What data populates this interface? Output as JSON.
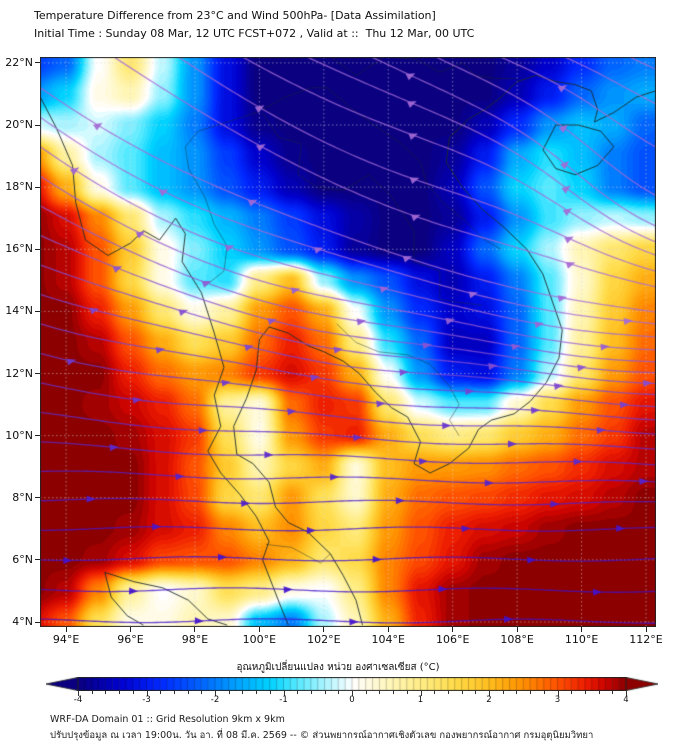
{
  "title": {
    "line1": "Temperature Difference from 23°C and Wind 500hPa- [Data Assimilation]",
    "line2": "Initial Time : Sunday 08 Mar, 12 UTC FCST+072 , Valid at ::  Thu 12 Mar, 00 UTC"
  },
  "map": {
    "lon_min": 93.19,
    "lon_max": 112.31,
    "lat_min": 3.84,
    "lat_max": 22.19,
    "x_ticks": [
      {
        "v": 94,
        "label": "94°E"
      },
      {
        "v": 96,
        "label": "96°E"
      },
      {
        "v": 98,
        "label": "98°E"
      },
      {
        "v": 100,
        "label": "100°E"
      },
      {
        "v": 102,
        "label": "102°E"
      },
      {
        "v": 104,
        "label": "104°E"
      },
      {
        "v": 106,
        "label": "106°E"
      },
      {
        "v": 108,
        "label": "108°E"
      },
      {
        "v": 110,
        "label": "110°E"
      },
      {
        "v": 112,
        "label": "112°E"
      }
    ],
    "y_ticks": [
      {
        "v": 22,
        "label": "22°N"
      },
      {
        "v": 20,
        "label": "20°N"
      },
      {
        "v": 18,
        "label": "18°N"
      },
      {
        "v": 16,
        "label": "16°N"
      },
      {
        "v": 14,
        "label": "14°N"
      },
      {
        "v": 12,
        "label": "12°N"
      },
      {
        "v": 10,
        "label": "10°N"
      },
      {
        "v": 8,
        "label": "8°N"
      },
      {
        "v": 6,
        "label": "6°N"
      },
      {
        "v": 4,
        "label": "4°N"
      }
    ],
    "gridline_interval_deg": 2,
    "gridline_color": "rgba(215,215,215,0.55)",
    "coast_color": "#1c2b2b",
    "frame_color": "#222222"
  },
  "chart_data": {
    "type": "heatmap",
    "overlay": "streamlines",
    "variable": "Temperature difference from 23°C at 500 hPa (°C)",
    "grid": {
      "lons": [
        93,
        94,
        95,
        96,
        97,
        98,
        99,
        100,
        101,
        102,
        103,
        104,
        105,
        106,
        107,
        108,
        109,
        110,
        111,
        112,
        113
      ],
      "lats": [
        23,
        22,
        21,
        20,
        19,
        18,
        17,
        16,
        15,
        14,
        13,
        12,
        11,
        10,
        9,
        8,
        7,
        6,
        5,
        4,
        3
      ],
      "values": [
        [
          -2.6,
          -2.2,
          0.0,
          1.2,
          -0.3,
          -1.8,
          -3.2,
          -4,
          -4,
          -4,
          -4,
          -4,
          -4,
          -4,
          -4,
          -3.8,
          -3.4,
          -2.8,
          -2.2,
          -2.0,
          -2.0
        ],
        [
          -2.6,
          -2.2,
          0.0,
          1.2,
          -0.3,
          -1.8,
          -3.2,
          -4,
          -4,
          -4,
          -4,
          -4,
          -4,
          -4,
          -4,
          -3.8,
          -3.4,
          -2.8,
          -2.2,
          -2.0,
          -2.0
        ],
        [
          -1.8,
          -1.2,
          0.2,
          0.6,
          -0.5,
          -1.8,
          -3.2,
          -4,
          -4,
          -4,
          -4,
          -4,
          -4,
          -4,
          -4,
          -3.6,
          -3.0,
          -2.2,
          -1.8,
          -1.6,
          -1.6
        ],
        [
          -0.2,
          -0.4,
          -0.2,
          -0.6,
          -1.2,
          -2.0,
          -3.2,
          -3.9,
          -4,
          -4,
          -4,
          -4,
          -4,
          -4,
          -3.6,
          -2.8,
          -1.8,
          -1.4,
          -1.6,
          -2.2,
          -2.4
        ],
        [
          2.6,
          0.8,
          -0.4,
          -0.8,
          -1.4,
          -1.8,
          -2.6,
          -3.4,
          -3.9,
          -4,
          -4,
          -4,
          -4,
          -3.8,
          -3.0,
          -1.6,
          -1.0,
          -1.4,
          -2.0,
          -2.4,
          -2.6
        ],
        [
          3.6,
          2.2,
          0.2,
          -0.8,
          -1.4,
          -1.8,
          -2.4,
          -3.0,
          -3.6,
          -4,
          -4,
          -4,
          -4,
          -3.6,
          -2.4,
          -1.2,
          -0.8,
          -1.2,
          -2.0,
          -2.4,
          -2.6
        ],
        [
          4,
          3.6,
          2.6,
          1.2,
          -0.4,
          -1.0,
          -1.5,
          -2.0,
          -2.6,
          -3.2,
          -3.7,
          -4,
          -4,
          -3.8,
          -3.0,
          -1.8,
          -0.9,
          -0.5,
          -0.3,
          -0.5,
          -0.7
        ],
        [
          4,
          3.8,
          3.0,
          1.8,
          0.2,
          -0.6,
          -1.2,
          -1.8,
          -2.4,
          -3.0,
          -3.8,
          -4,
          -4,
          -3.5,
          -2.2,
          -1.2,
          -0.4,
          0.6,
          1.2,
          1.6,
          1.6
        ],
        [
          4,
          3.8,
          3.0,
          1.6,
          0.2,
          -0.8,
          -1.0,
          1.0,
          2.0,
          -0.5,
          -1.8,
          -2.4,
          -3.2,
          -3.6,
          -3.0,
          -2.0,
          -0.8,
          0.4,
          1.6,
          2.2,
          2.4
        ],
        [
          4,
          4,
          3.4,
          2.4,
          1.2,
          0.2,
          0.8,
          2.4,
          3.0,
          2.2,
          0.0,
          -1.8,
          -2.8,
          -3.4,
          -3.2,
          -2.2,
          -0.8,
          0.6,
          1.8,
          2.6,
          2.8
        ],
        [
          4,
          4,
          3.8,
          3.0,
          2.2,
          1.4,
          1.8,
          2.8,
          3.4,
          2.8,
          1.0,
          -1.0,
          -2.2,
          -3.5,
          -3.5,
          -2.2,
          -0.8,
          0.8,
          2.0,
          2.8,
          3.0
        ],
        [
          4,
          4,
          4,
          3.4,
          2.8,
          2.4,
          2.6,
          3.2,
          3.6,
          3.2,
          2.2,
          0.0,
          -1.8,
          -3.0,
          -3.2,
          -2.0,
          -0.4,
          1.2,
          2.4,
          3.0,
          3.2
        ],
        [
          4,
          4,
          3.9,
          3.7,
          3.4,
          2.8,
          0.8,
          0.3,
          2.8,
          3.4,
          3.2,
          1.2,
          -0.2,
          -0.8,
          -0.8,
          0.4,
          1.5,
          2.4,
          3.0,
          3.5,
          3.6
        ],
        [
          4,
          4,
          4,
          3.9,
          3.6,
          3.2,
          1.4,
          0.2,
          2.4,
          3.2,
          3.4,
          2.2,
          1.4,
          1.0,
          1.2,
          1.8,
          2.2,
          2.8,
          3.2,
          3.8,
          3.8
        ],
        [
          4,
          4,
          4,
          4,
          3.6,
          3.0,
          1.8,
          0.6,
          1.6,
          2.2,
          0.3,
          2.0,
          2.4,
          2.4,
          2.5,
          2.8,
          3.0,
          3.3,
          3.6,
          3.8,
          3.8
        ],
        [
          4,
          4,
          4,
          4,
          3.6,
          3.1,
          1.6,
          1.2,
          2.4,
          1.4,
          0.4,
          2.2,
          2.8,
          3.0,
          3.1,
          3.3,
          3.5,
          3.6,
          3.8,
          4,
          4
        ],
        [
          4,
          4,
          4,
          3.9,
          3.6,
          3.4,
          2.6,
          2.0,
          2.5,
          1.6,
          1.1,
          2.4,
          3.0,
          3.4,
          3.6,
          3.7,
          3.9,
          4,
          4,
          4,
          4
        ],
        [
          4,
          4,
          3.9,
          3.6,
          3.1,
          3.0,
          3.0,
          2.6,
          2.1,
          1.2,
          1.5,
          2.6,
          3.1,
          3.5,
          3.9,
          4,
          4,
          4,
          4,
          4,
          4
        ],
        [
          4,
          3.8,
          2.6,
          0.8,
          0.0,
          0.4,
          1.4,
          1.0,
          0.2,
          0.0,
          1.0,
          2.6,
          3.5,
          3.9,
          4,
          4,
          4,
          4,
          4,
          4,
          4
        ],
        [
          3.6,
          3.0,
          1.4,
          0.2,
          0.2,
          0.6,
          0.4,
          -1.4,
          -2.0,
          -0.4,
          0.6,
          2.2,
          3.4,
          3.9,
          4,
          4,
          4,
          4,
          4,
          4,
          4
        ],
        [
          3.6,
          3.0,
          1.4,
          0.2,
          0.2,
          0.6,
          0.4,
          -1.4,
          -2.0,
          -0.4,
          0.6,
          2.2,
          3.4,
          3.9,
          4,
          4,
          4,
          4,
          4,
          4,
          4
        ]
      ]
    },
    "colormap": [
      [
        -4.0,
        "#0a0080"
      ],
      [
        -3.4,
        "#0000cd"
      ],
      [
        -2.8,
        "#0028ff"
      ],
      [
        -2.2,
        "#0064ff"
      ],
      [
        -1.7,
        "#00a0ff"
      ],
      [
        -1.2,
        "#00d2ff"
      ],
      [
        -0.8,
        "#55e9ff"
      ],
      [
        -0.4,
        "#aaf4ff"
      ],
      [
        -0.1,
        "#e8fdff"
      ],
      [
        0.0,
        "#ffffff"
      ],
      [
        0.15,
        "#fffced"
      ],
      [
        0.5,
        "#fff7c0"
      ],
      [
        1.0,
        "#ffed86"
      ],
      [
        1.5,
        "#ffdc4a"
      ],
      [
        2.0,
        "#ffbe1e"
      ],
      [
        2.5,
        "#ff9000"
      ],
      [
        3.0,
        "#ff5200"
      ],
      [
        3.4,
        "#ee1e00"
      ],
      [
        3.7,
        "#cc0400"
      ],
      [
        4.0,
        "#8c0000"
      ]
    ],
    "wind": {
      "style": "streamlines",
      "direction_summary": "northwesterly flow over the north curving east-southeast (dipping near Hainan), near-zonal westerly flow over the south",
      "line_color_south": "#4212cc",
      "line_color_north": "#a46ad6",
      "arrow": "filled triangle along flow"
    }
  },
  "colorbar": {
    "label": "อุณหภูมิเปลี่ยนแปลง หน่วย องศาเซลเซียส (°C)",
    "ticks": [
      -4,
      -3,
      -2,
      -1,
      0,
      1,
      2,
      3,
      4
    ],
    "minor_step": 0.2,
    "range": [
      -4,
      4
    ]
  },
  "footer": {
    "line1": "WRF-DA Domain 01 :: Grid Resolution 9km x 9km",
    "line2": "ปรับปรุงข้อมูล ณ เวลา 19:00น. วัน อา. ที่ 08 มี.ค. 2569 -- © ส่วนพยากรณ์อากาศเชิงตัวเลข กองพยากรณ์อากาศ กรมอุตุนิยมวิทยา"
  },
  "coastlines": [
    [
      [
        93.2,
        20.9
      ],
      [
        93.7,
        19.9
      ],
      [
        94.2,
        18.7
      ],
      [
        94.3,
        17.5
      ],
      [
        94.6,
        16.3
      ],
      [
        95.3,
        15.8
      ],
      [
        96.0,
        16.2
      ],
      [
        96.4,
        16.6
      ],
      [
        96.9,
        16.3
      ],
      [
        97.4,
        17.0
      ],
      [
        97.7,
        16.5
      ],
      [
        97.6,
        15.6
      ],
      [
        98.2,
        14.6
      ],
      [
        98.6,
        13.3
      ],
      [
        98.9,
        12.2
      ],
      [
        98.6,
        11.3
      ],
      [
        98.8,
        10.3
      ],
      [
        98.4,
        9.5
      ],
      [
        98.8,
        8.8
      ],
      [
        99.4,
        8.1
      ],
      [
        99.9,
        7.4
      ],
      [
        100.3,
        6.6
      ],
      [
        100.1,
        6.0
      ],
      [
        100.4,
        5.2
      ],
      [
        100.7,
        4.4
      ],
      [
        100.9,
        3.9
      ]
    ],
    [
      [
        103.2,
        3.9
      ],
      [
        103.0,
        4.7
      ],
      [
        102.6,
        5.5
      ],
      [
        102.2,
        6.2
      ],
      [
        101.5,
        6.9
      ],
      [
        100.9,
        7.2
      ],
      [
        100.5,
        7.7
      ],
      [
        100.3,
        8.5
      ],
      [
        99.8,
        9.1
      ],
      [
        99.3,
        9.4
      ],
      [
        99.2,
        10.3
      ],
      [
        99.6,
        11.2
      ],
      [
        99.9,
        12.1
      ],
      [
        100.0,
        13.1
      ],
      [
        100.3,
        13.5
      ],
      [
        100.9,
        13.3
      ],
      [
        101.5,
        12.9
      ],
      [
        102.0,
        12.7
      ],
      [
        102.6,
        12.4
      ],
      [
        103.1,
        12.0
      ],
      [
        103.6,
        11.4
      ],
      [
        104.1,
        10.9
      ],
      [
        104.6,
        10.6
      ],
      [
        105.0,
        9.8
      ],
      [
        104.8,
        9.1
      ],
      [
        105.3,
        8.8
      ],
      [
        105.9,
        9.1
      ],
      [
        106.5,
        9.6
      ],
      [
        106.8,
        10.2
      ],
      [
        107.2,
        10.5
      ],
      [
        107.9,
        10.7
      ],
      [
        108.4,
        11.1
      ],
      [
        108.9,
        11.7
      ],
      [
        109.3,
        12.5
      ],
      [
        109.4,
        13.4
      ],
      [
        109.1,
        14.3
      ],
      [
        108.8,
        15.2
      ],
      [
        108.3,
        16.0
      ],
      [
        107.6,
        16.7
      ],
      [
        106.9,
        17.3
      ],
      [
        106.3,
        18.0
      ],
      [
        105.8,
        18.8
      ],
      [
        105.9,
        19.6
      ],
      [
        106.5,
        20.2
      ],
      [
        107.0,
        20.5
      ],
      [
        107.5,
        20.9
      ],
      [
        108.0,
        21.4
      ],
      [
        108.6,
        21.6
      ],
      [
        109.2,
        21.4
      ],
      [
        109.8,
        21.3
      ],
      [
        110.3,
        21.1
      ],
      [
        110.5,
        20.5
      ],
      [
        110.4,
        20.1
      ],
      [
        111.0,
        20.4
      ],
      [
        111.7,
        20.9
      ],
      [
        112.3,
        21.1
      ]
    ],
    [
      [
        109.2,
        20.0
      ],
      [
        109.9,
        20.0
      ],
      [
        110.6,
        19.8
      ],
      [
        111.0,
        19.3
      ],
      [
        110.5,
        18.7
      ],
      [
        109.8,
        18.4
      ],
      [
        109.2,
        18.6
      ],
      [
        108.8,
        19.2
      ],
      [
        109.2,
        20.0
      ]
    ],
    [
      [
        95.2,
        5.6
      ],
      [
        96.1,
        5.3
      ],
      [
        97.0,
        5.1
      ],
      [
        97.8,
        4.7
      ],
      [
        98.4,
        4.1
      ],
      [
        99.0,
        3.9
      ]
    ],
    [
      [
        95.2,
        5.6
      ],
      [
        95.4,
        4.8
      ],
      [
        95.9,
        4.2
      ],
      [
        96.4,
        3.9
      ]
    ]
  ],
  "borders": [
    [
      [
        97.8,
        18.6
      ],
      [
        98.3,
        17.7
      ],
      [
        98.6,
        16.8
      ],
      [
        99.0,
        16.1
      ],
      [
        98.9,
        15.3
      ],
      [
        98.3,
        14.8
      ]
    ],
    [
      [
        100.1,
        20.4
      ],
      [
        100.6,
        19.6
      ],
      [
        101.3,
        19.4
      ],
      [
        101.2,
        18.4
      ],
      [
        101.8,
        18.0
      ],
      [
        102.6,
        17.9
      ],
      [
        103.4,
        18.4
      ],
      [
        104.1,
        17.7
      ],
      [
        104.8,
        16.6
      ],
      [
        104.8,
        15.6
      ],
      [
        105.6,
        15.3
      ],
      [
        105.6,
        14.4
      ],
      [
        106.1,
        14.3
      ],
      [
        106.9,
        14.2
      ]
    ],
    [
      [
        102.4,
        13.6
      ],
      [
        103.0,
        13.0
      ],
      [
        103.7,
        12.7
      ],
      [
        104.6,
        12.6
      ],
      [
        105.3,
        12.3
      ],
      [
        105.9,
        11.6
      ],
      [
        106.2,
        11.0
      ],
      [
        105.9,
        10.5
      ],
      [
        106.2,
        10.0
      ]
    ],
    [
      [
        102.1,
        21.2
      ],
      [
        102.9,
        20.5
      ],
      [
        103.7,
        19.9
      ],
      [
        104.4,
        19.4
      ],
      [
        105.0,
        18.8
      ],
      [
        105.2,
        18.1
      ],
      [
        105.7,
        17.5
      ],
      [
        106.4,
        16.9
      ],
      [
        107.0,
        16.3
      ],
      [
        107.5,
        16.0
      ]
    ],
    [
      [
        102.2,
        22.2
      ],
      [
        103.0,
        21.6
      ],
      [
        103.9,
        22.2
      ],
      [
        104.9,
        22.1
      ],
      [
        105.6,
        21.7
      ],
      [
        106.3,
        22.0
      ],
      [
        106.7,
        21.6
      ],
      [
        107.3,
        21.5
      ],
      [
        108.0,
        21.5
      ]
    ],
    [
      [
        97.8,
        18.6
      ],
      [
        97.7,
        19.3
      ],
      [
        98.1,
        19.8
      ],
      [
        99.0,
        20.1
      ],
      [
        99.9,
        20.4
      ],
      [
        100.8,
        20.9
      ],
      [
        101.6,
        21.2
      ],
      [
        102.1,
        21.2
      ]
    ],
    [
      [
        100.2,
        6.5
      ],
      [
        101.0,
        6.4
      ],
      [
        101.9,
        5.9
      ],
      [
        102.2,
        6.2
      ]
    ]
  ]
}
